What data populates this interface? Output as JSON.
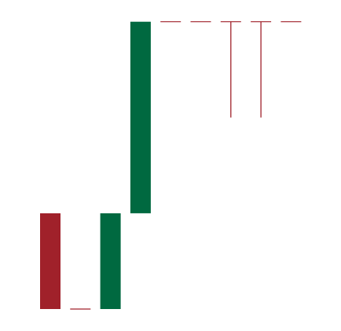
{
  "chart_data": {
    "type": "candlestick",
    "title": "",
    "xlabel": "",
    "ylabel": "",
    "grid": false,
    "legend": "none",
    "axes_visible": false,
    "ylim": [
      0,
      100
    ],
    "colors": {
      "up": "#006940",
      "down": "#A0212A",
      "flat": "#A0212A",
      "background": "#FFFFFF"
    },
    "candles": [
      {
        "index": 0,
        "open": 100,
        "high": 100,
        "low": 0,
        "close": 0
      },
      {
        "index": 1,
        "open": 0,
        "high": 0,
        "low": 0,
        "close": 0
      },
      {
        "index": 2,
        "open": 0,
        "high": 100,
        "low": 0,
        "close": 100
      },
      {
        "index": 3,
        "open": 100,
        "high": 300,
        "low": 100,
        "close": 300
      },
      {
        "index": 4,
        "open": 300,
        "high": 300,
        "low": 300,
        "close": 300
      },
      {
        "index": 5,
        "open": 300,
        "high": 300,
        "low": 300,
        "close": 300
      },
      {
        "index": 6,
        "open": 300,
        "high": 300,
        "low": 200,
        "close": 300
      },
      {
        "index": 7,
        "open": 300,
        "high": 300,
        "low": 200,
        "close": 300
      },
      {
        "index": 8,
        "open": 300,
        "high": 300,
        "low": 300,
        "close": 300
      }
    ]
  }
}
